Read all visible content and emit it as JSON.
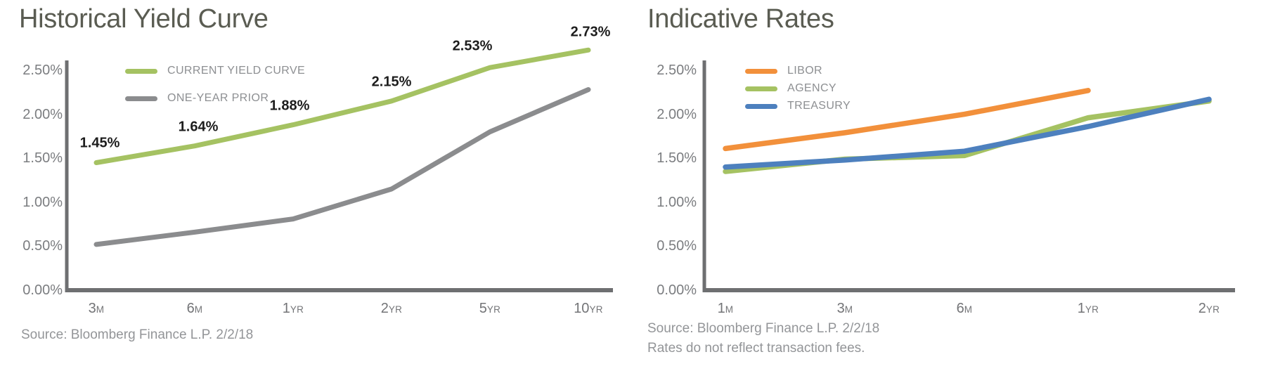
{
  "chart_data": [
    {
      "type": "line",
      "title": "Historical Yield Curve",
      "categories": [
        "3M",
        "6M",
        "1YR",
        "2YR",
        "5YR",
        "10YR"
      ],
      "series": [
        {
          "name": "CURRENT YIELD CURVE",
          "color": "#a5c262",
          "values": [
            1.45,
            1.64,
            1.88,
            2.15,
            2.53,
            2.73
          ],
          "point_labels": [
            "1.45%",
            "1.64%",
            "1.88%",
            "2.15%",
            "2.53%",
            "2.73%"
          ]
        },
        {
          "name": "ONE-YEAR PRIOR",
          "color": "#8b8c8e",
          "values": [
            0.52,
            0.66,
            0.81,
            1.15,
            1.8,
            2.28
          ]
        }
      ],
      "ylim": [
        0,
        2.5
      ],
      "y_tick_labels_top_down": [
        "2.50%",
        "2.00%",
        "1.50%",
        "1.00%",
        "0.50%",
        "0.00%"
      ],
      "grid": false,
      "legend_position": "top-left-inside",
      "source": "Source: Bloomberg Finance L.P. 2/2/18"
    },
    {
      "type": "line",
      "title": "Indicative Rates",
      "categories": [
        "1M",
        "3M",
        "6M",
        "1YR",
        "2YR"
      ],
      "series": [
        {
          "name": "LIBOR",
          "color": "#f2903b",
          "values": [
            1.61,
            1.79,
            2.0,
            2.27,
            null
          ]
        },
        {
          "name": "AGENCY",
          "color": "#a5c262",
          "values": [
            1.35,
            1.49,
            1.53,
            1.96,
            2.15
          ]
        },
        {
          "name": "TREASURY",
          "color": "#4d80be",
          "values": [
            1.4,
            1.48,
            1.58,
            1.86,
            2.17
          ]
        }
      ],
      "ylim": [
        0,
        2.5
      ],
      "y_tick_labels_top_down": [
        "2.50%",
        "2.00%",
        "1.50%",
        "1.00%",
        "0.50%",
        "0.00%"
      ],
      "grid": false,
      "legend_position": "top-left-inside",
      "source": "Source: Bloomberg Finance L.P. 2/2/18",
      "footnote": "Rates do not reflect transaction fees."
    }
  ],
  "style_colors": {
    "axis": "#6e6f71",
    "title_text": "#5a5c52",
    "y_tick_text": "#7b7d80",
    "x_tick_text": "#737477",
    "legend_text": "#8d8f92",
    "source_text": "#939598",
    "data_label_text": "#1d1d1d"
  }
}
